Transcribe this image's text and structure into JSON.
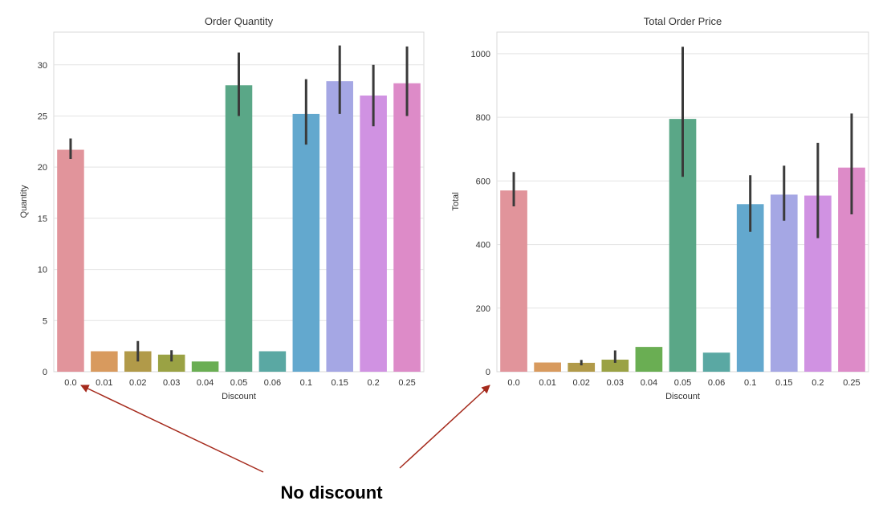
{
  "chart_data": [
    {
      "type": "bar",
      "title": "Order Quantity",
      "xlabel": "Discount",
      "ylabel": "Quantity",
      "categories": [
        "0.0",
        "0.01",
        "0.02",
        "0.03",
        "0.04",
        "0.05",
        "0.06",
        "0.1",
        "0.15",
        "0.2",
        "0.25"
      ],
      "values": [
        21.7,
        2.0,
        2.0,
        1.67,
        1.0,
        28.0,
        2.0,
        25.2,
        28.4,
        27.0,
        28.2
      ],
      "ci_low": [
        20.8,
        null,
        1.0,
        1.0,
        null,
        25.0,
        null,
        22.2,
        25.2,
        24.0,
        25.0
      ],
      "ci_high": [
        22.8,
        null,
        3.0,
        2.1,
        null,
        31.2,
        null,
        28.6,
        31.9,
        30.0,
        31.8
      ],
      "ylim": [
        0,
        33.2
      ],
      "yticks": [
        0,
        5,
        10,
        15,
        20,
        25,
        30
      ],
      "grid": true
    },
    {
      "type": "bar",
      "title": "Total Order Price",
      "xlabel": "Discount",
      "ylabel": "Total",
      "categories": [
        "0.0",
        "0.01",
        "0.02",
        "0.03",
        "0.04",
        "0.05",
        "0.06",
        "0.1",
        "0.15",
        "0.2",
        "0.25"
      ],
      "values": [
        570,
        29,
        28,
        38,
        78,
        795,
        60,
        527,
        557,
        554,
        642
      ],
      "ci_low": [
        520,
        null,
        20,
        28,
        null,
        613,
        null,
        440,
        475,
        420,
        495
      ],
      "ci_high": [
        628,
        null,
        37,
        67,
        null,
        1022,
        null,
        618,
        648,
        720,
        812
      ],
      "ylim": [
        0,
        1068
      ],
      "yticks": [
        0,
        200,
        400,
        600,
        800,
        1000
      ],
      "grid": true
    }
  ],
  "bar_colors": [
    "#e1949b",
    "#d89a5e",
    "#b19a49",
    "#9aa244",
    "#6aae53",
    "#5aa787",
    "#5aa8a3",
    "#63a8ce",
    "#a5a7e4",
    "#d092e2",
    "#dd8bc8"
  ],
  "errorbar_color": "#3a3a3a",
  "annotation": {
    "text": "No discount",
    "arrow_color": "#a52a1c"
  }
}
